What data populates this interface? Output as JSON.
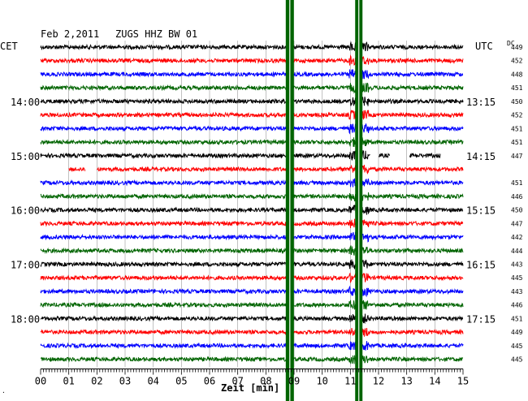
{
  "header": {
    "date": "Feb 2,2011",
    "station": "ZUGS HHZ BW 01"
  },
  "labels": {
    "left_tz": "CET",
    "right_tz": "UTC",
    "dc": "DC",
    "xlabel": "Zeit [min]",
    "corner": "·"
  },
  "colors": {
    "black": "#000000",
    "red": "#ff0000",
    "blue": "#0000ff",
    "green": "#006400",
    "event_band": "#006400"
  },
  "chart_data": {
    "type": "line",
    "title": "Feb 2,2011   ZUGS HHZ BW 01",
    "xlabel": "Zeit [min]",
    "ylabel": "",
    "xlim": [
      0,
      15
    ],
    "x_ticks": [
      "00",
      "01",
      "02",
      "03",
      "04",
      "05",
      "06",
      "07",
      "08",
      "09",
      "10",
      "11",
      "12",
      "13",
      "14",
      "15"
    ],
    "trace_colors": [
      "black",
      "red",
      "blue",
      "green"
    ],
    "num_traces": 24,
    "minutes_per_trace": 15,
    "left_hour_labels": [
      {
        "trace": 4,
        "label": "14:00"
      },
      {
        "trace": 8,
        "label": "15:00"
      },
      {
        "trace": 12,
        "label": "16:00"
      },
      {
        "trace": 16,
        "label": "17:00"
      },
      {
        "trace": 20,
        "label": "18:00"
      }
    ],
    "right_time_labels": [
      {
        "trace": 4,
        "label": "13:15"
      },
      {
        "trace": 8,
        "label": "14:15"
      },
      {
        "trace": 12,
        "label": "15:15"
      },
      {
        "trace": 16,
        "label": "16:15"
      },
      {
        "trace": 20,
        "label": "17:15"
      }
    ],
    "dc_values": [
      "449",
      "452",
      "448",
      "451",
      "450",
      "452",
      "451",
      "451",
      "447",
      "",
      "451",
      "446",
      "450",
      "447",
      "442",
      "444",
      "443",
      "445",
      "443",
      "446",
      "451",
      "449",
      "445",
      "445"
    ],
    "event_bands_min": [
      8.85,
      11.3
    ],
    "gaps": [
      {
        "trace": 8,
        "from_min": 11.7,
        "to_min": 12.0
      },
      {
        "trace": 8,
        "from_min": 12.4,
        "to_min": 13.1
      },
      {
        "trace": 8,
        "from_min": 14.2,
        "to_min": 15.0
      },
      {
        "trace": 9,
        "from_min": 0.0,
        "to_min": 1.0
      },
      {
        "trace": 9,
        "from_min": 1.6,
        "to_min": 2.0
      }
    ]
  }
}
